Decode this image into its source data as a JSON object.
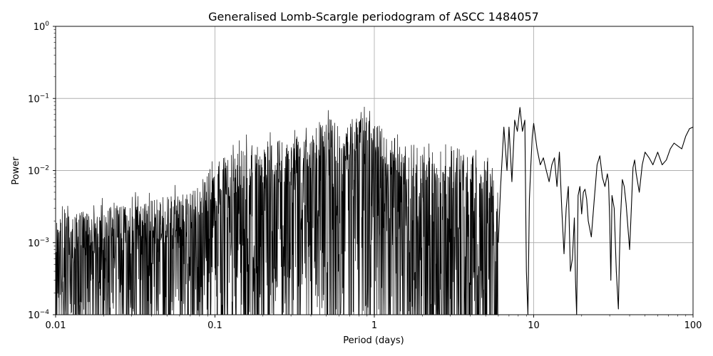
{
  "chart_data": {
    "type": "line",
    "title": "Generalised Lomb-Scargle periodogram of ASCC 1484057",
    "xlabel": "Period (days)",
    "ylabel": "Power",
    "xscale": "log",
    "yscale": "log",
    "xlim": [
      0.01,
      100
    ],
    "ylim": [
      0.0001,
      1
    ],
    "grid": true,
    "line_color": "#000000",
    "x_ticks": [
      {
        "value": 0.01,
        "label": "0.01"
      },
      {
        "value": 0.1,
        "label": "0.1"
      },
      {
        "value": 1,
        "label": "1"
      },
      {
        "value": 10,
        "label": "10"
      },
      {
        "value": 100,
        "label": "100"
      }
    ],
    "y_ticks": [
      {
        "value": 0.0001,
        "base": "10",
        "exp": "−4"
      },
      {
        "value": 0.001,
        "base": "10",
        "exp": "−3"
      },
      {
        "value": 0.01,
        "base": "10",
        "exp": "−2"
      },
      {
        "value": 0.1,
        "base": "10",
        "exp": "−1"
      },
      {
        "value": 1,
        "base": "10",
        "exp": "0"
      }
    ],
    "envelope": {
      "description": "dense periodogram; envelope of peak power vs period",
      "x": [
        0.01,
        0.02,
        0.04,
        0.07,
        0.1,
        0.15,
        0.2,
        0.3,
        0.4,
        0.5,
        0.6,
        0.7,
        0.8,
        0.9,
        1.0,
        1.2,
        1.5,
        2.0,
        2.5,
        3.0,
        4.0,
        5.0,
        6.0
      ],
      "y": [
        0.0025,
        0.003,
        0.004,
        0.005,
        0.012,
        0.022,
        0.03,
        0.027,
        0.04,
        0.06,
        0.045,
        0.055,
        0.065,
        0.065,
        0.072,
        0.032,
        0.025,
        0.025,
        0.018,
        0.023,
        0.018,
        0.012,
        0.008
      ]
    },
    "smooth_series": {
      "x": [
        6.0,
        6.2,
        6.5,
        6.8,
        7.0,
        7.3,
        7.6,
        7.9,
        8.2,
        8.5,
        8.8,
        9.0,
        9.2,
        9.4,
        9.6,
        9.8,
        10.0,
        10.5,
        11.0,
        11.5,
        12.0,
        12.5,
        13.0,
        13.5,
        14.0,
        14.5,
        15.0,
        15.5,
        16.0,
        16.5,
        17.0,
        17.5,
        18.0,
        18.3,
        18.6,
        19.0,
        19.5,
        20.0,
        20.5,
        21.0,
        21.5,
        22.0,
        23.0,
        24.0,
        25.0,
        26.0,
        27.0,
        28.0,
        29.0,
        29.5,
        30.0,
        30.5,
        31.0,
        32.0,
        33.0,
        34.0,
        34.5,
        35.0,
        36.0,
        37.0,
        38.0,
        40.0,
        41.0,
        42.0,
        43.0,
        44.0,
        46.0,
        48.0,
        50.0,
        53.0,
        56.0,
        60.0,
        64.0,
        68.0,
        72.0,
        76.0,
        80.0,
        85.0,
        90.0,
        95.0,
        100.0
      ],
      "y": [
        0.001,
        0.006,
        0.04,
        0.01,
        0.04,
        0.007,
        0.05,
        0.035,
        0.075,
        0.035,
        0.05,
        0.0004,
        0.0001,
        0.004,
        0.012,
        0.03,
        0.045,
        0.02,
        0.012,
        0.015,
        0.01,
        0.007,
        0.012,
        0.015,
        0.006,
        0.018,
        0.003,
        0.0007,
        0.003,
        0.006,
        0.0004,
        0.0006,
        0.0022,
        0.0003,
        0.0001,
        0.0045,
        0.006,
        0.0025,
        0.005,
        0.0055,
        0.004,
        0.002,
        0.0012,
        0.004,
        0.012,
        0.016,
        0.008,
        0.006,
        0.009,
        0.007,
        0.002,
        0.0003,
        0.0045,
        0.003,
        0.0004,
        0.00012,
        0.0006,
        0.002,
        0.0075,
        0.006,
        0.0035,
        0.0008,
        0.003,
        0.011,
        0.014,
        0.009,
        0.005,
        0.012,
        0.018,
        0.015,
        0.012,
        0.018,
        0.012,
        0.014,
        0.02,
        0.024,
        0.022,
        0.02,
        0.03,
        0.038,
        0.04
      ]
    }
  }
}
